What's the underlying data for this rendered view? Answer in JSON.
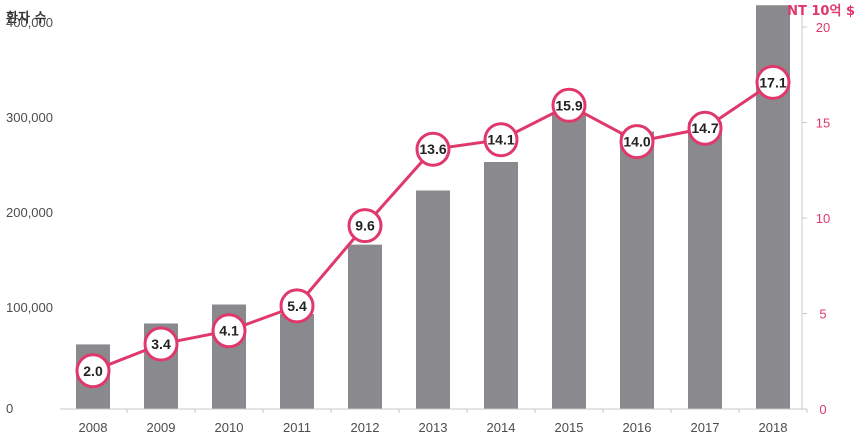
{
  "chart_data": {
    "type": "bar+line",
    "categories": [
      "2008",
      "2009",
      "2010",
      "2011",
      "2012",
      "2013",
      "2014",
      "2015",
      "2016",
      "2017",
      "2018"
    ],
    "bar_series": {
      "axis": "left",
      "values": [
        68000,
        90000,
        110000,
        100000,
        173000,
        230000,
        260000,
        312000,
        292000,
        302000,
        425000
      ]
    },
    "line_series": {
      "axis": "right",
      "values": [
        2.0,
        3.4,
        4.1,
        5.4,
        9.6,
        13.6,
        14.1,
        15.9,
        14.0,
        14.7,
        17.1
      ],
      "labels": [
        "2.0",
        "3.4",
        "4.1",
        "5.4",
        "9.6",
        "13.6",
        "14.1",
        "15.9",
        "14.0",
        "14.7",
        "17.1"
      ]
    },
    "left_axis": {
      "title": "환자 수",
      "ylim": [
        0,
        420000
      ],
      "ticks": [
        0,
        100000,
        200000,
        300000,
        400000
      ],
      "tick_labels": [
        "0",
        "100,000",
        "200,000",
        "300,000",
        "400,000"
      ]
    },
    "right_axis": {
      "title": "NT 10억 $",
      "ylim": [
        0,
        20
      ],
      "ticks": [
        0,
        5,
        10,
        15,
        20
      ],
      "tick_labels": [
        "0",
        "5",
        "10",
        "15",
        "20"
      ]
    },
    "grid": false,
    "colors": {
      "bar": "#8a8a8e",
      "line": "#e0386a",
      "marker_fill": "#ffffff",
      "axis": "#c8c8c8",
      "right_axis_text": "#e0386a"
    }
  }
}
